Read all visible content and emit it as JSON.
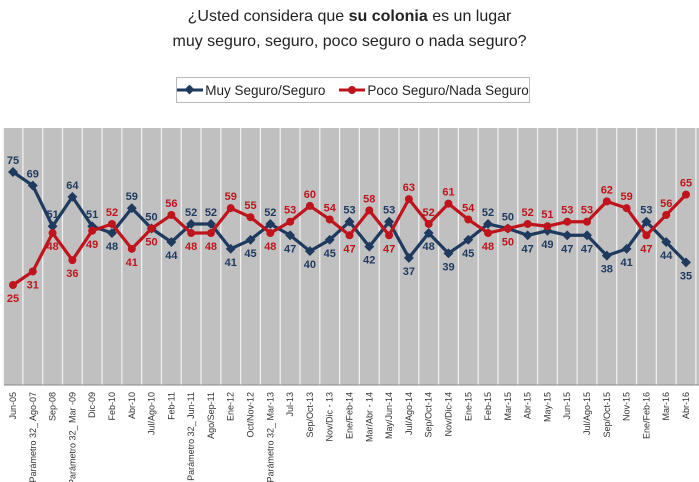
{
  "chart_data": {
    "type": "line",
    "title_line1_pre": "¿Usted considera que ",
    "title_line1_bold": "su colonia",
    "title_line1_post": " es un lugar",
    "title_line2": "muy seguro, seguro, poco seguro o nada seguro?",
    "legend_position": "top",
    "grid": "vertical",
    "ylim": [
      20,
      80
    ],
    "categories": [
      "Jun-05",
      "Parámetro 32_ Ago-07",
      "Sep-08",
      "Parámetro 32_ Mar -09",
      "Dic-09",
      "Feb-10",
      "Abr-10",
      "Jul/Ago-10",
      "Feb-11",
      "Parámetro 32_ Jun-11",
      "Ago/Sep-11",
      "Ene-12",
      "Oct/Nov-12",
      "Parámetro 32_ Mar-13",
      "Jul-13",
      "Sep/Oct-13",
      "Nov/Dic - 13",
      "Ene/Feb-14",
      "Mar/Abr - 14",
      "May/Jun-14",
      "Jul/Ago-14",
      "Sep/Oct-14",
      "Nov/Dic-14",
      "Ene-15",
      "Feb-15",
      "Mar-15",
      "Abr-15",
      "May-15",
      "Jun-15",
      "Jul/Ago-15",
      "Sep/Oct-15",
      "Nov-15",
      "Ene/Feb-16",
      "Mar-16",
      "Abr-16"
    ],
    "series": [
      {
        "name": "Muy Seguro/Seguro",
        "color": "#1f3a5f",
        "values": [
          75,
          69,
          51,
          64,
          51,
          48,
          59,
          50,
          44,
          52,
          52,
          41,
          45,
          52,
          47,
          40,
          45,
          53,
          42,
          53,
          37,
          48,
          39,
          45,
          52,
          50,
          47,
          49,
          47,
          47,
          38,
          41,
          53,
          44,
          35
        ]
      },
      {
        "name": "Poco Seguro/Nada Seguro",
        "color": "#c0141c",
        "values": [
          25,
          31,
          48,
          36,
          49,
          52,
          41,
          50,
          56,
          48,
          48,
          59,
          55,
          48,
          53,
          60,
          54,
          47,
          58,
          47,
          63,
          52,
          61,
          54,
          48,
          50,
          52,
          51,
          53,
          53,
          62,
          59,
          47,
          56,
          65
        ]
      }
    ],
    "plot_background": "#c0c0c0"
  }
}
